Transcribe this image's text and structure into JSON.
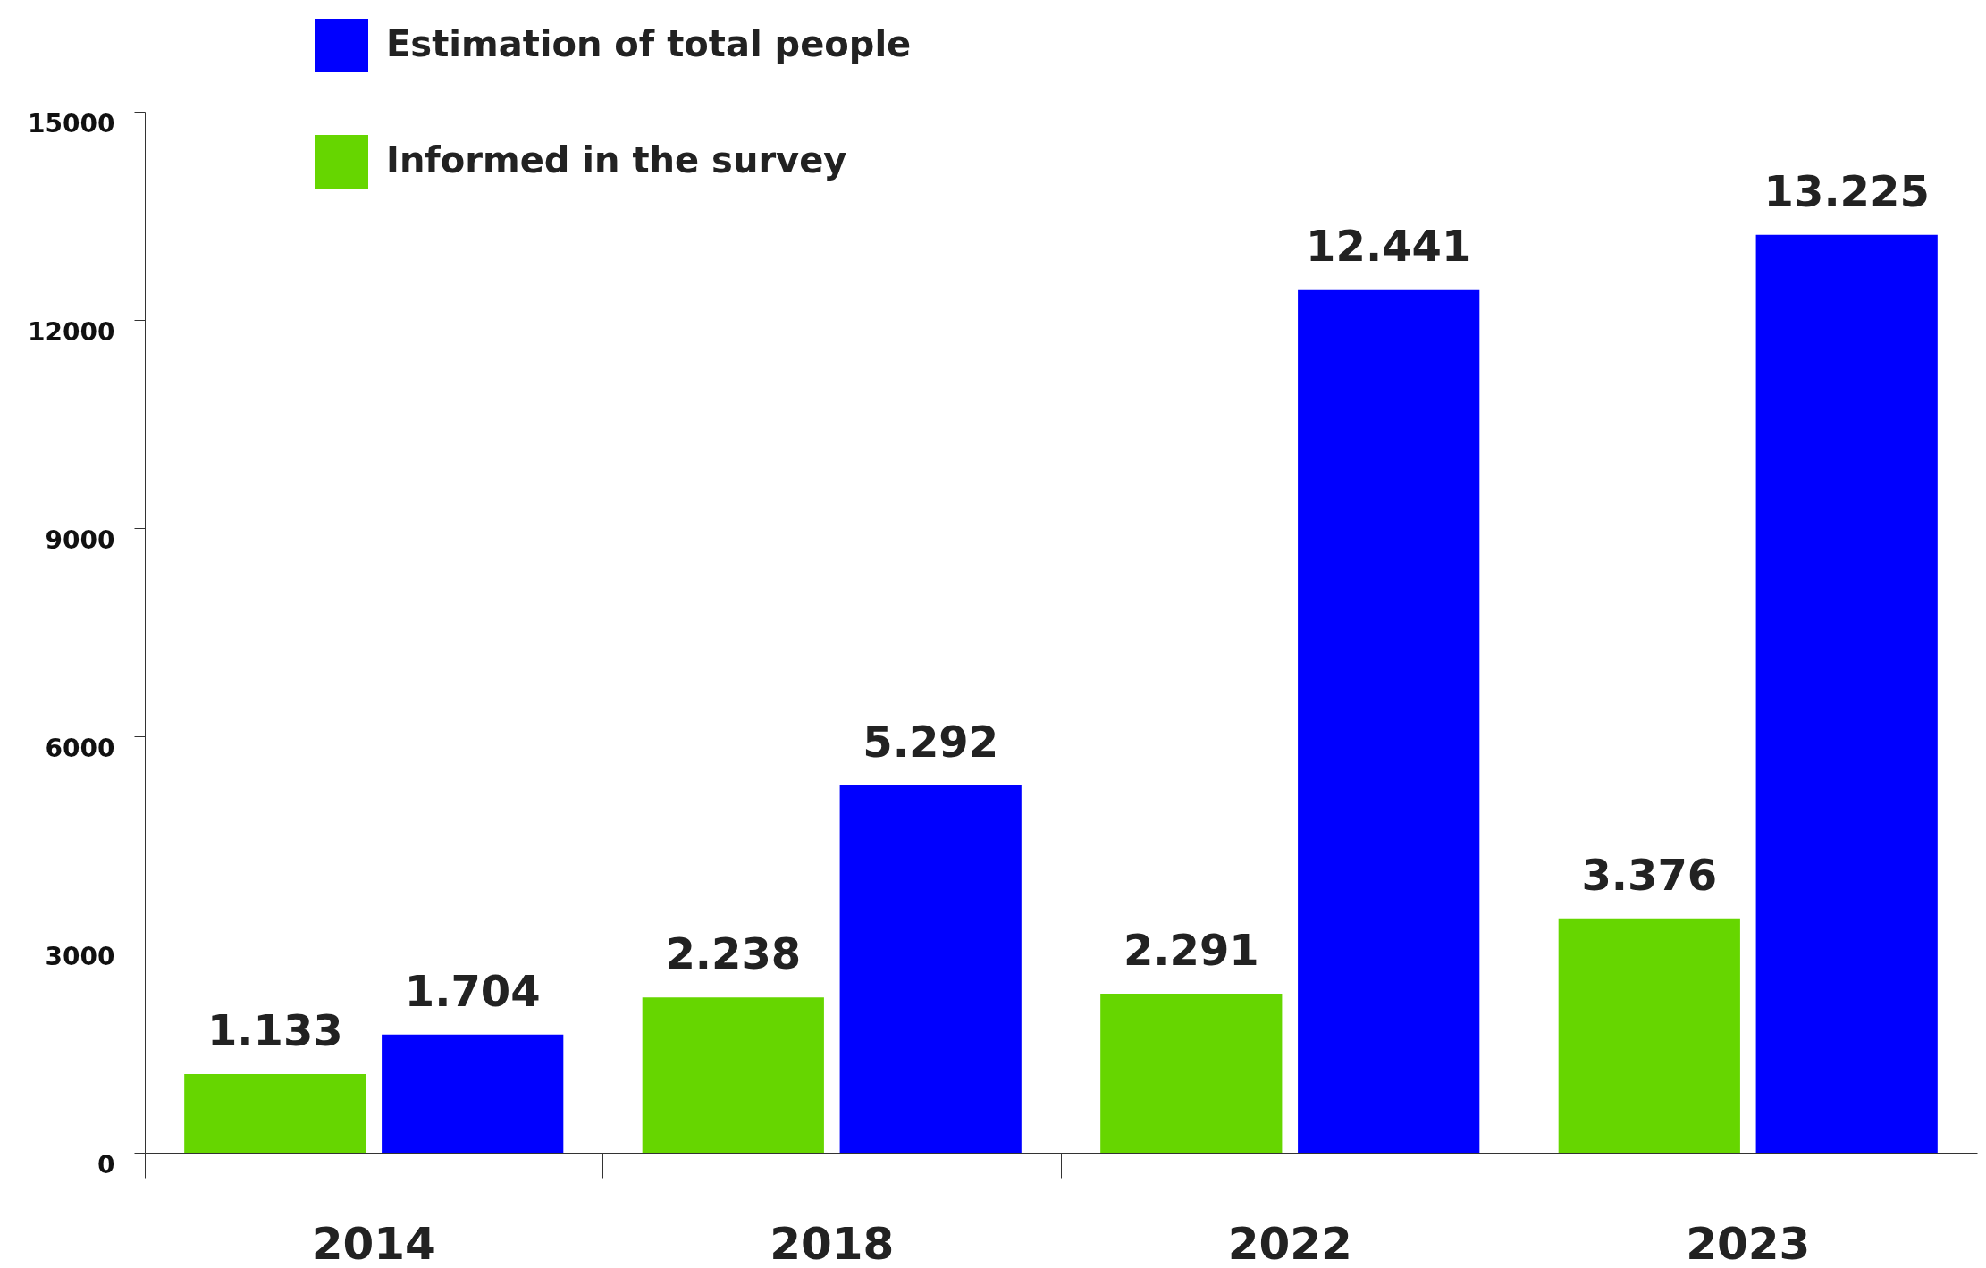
{
  "chart_data": {
    "type": "bar",
    "categories": [
      "2014",
      "2018",
      "2022",
      "2023"
    ],
    "series": [
      {
        "name": "Estimation of total people",
        "color": "#0000ff",
        "values": [
          1704,
          5292,
          12441,
          13225
        ],
        "value_labels": [
          "1.704",
          "5.292",
          "12.441",
          "13.225"
        ]
      },
      {
        "name": "Informed in the survey",
        "color": "#66d600",
        "values": [
          1133,
          2238,
          2291,
          3376
        ],
        "value_labels": [
          "1.133",
          "2.238",
          "2.291",
          "3.376"
        ]
      }
    ],
    "ylim": [
      0,
      15000
    ],
    "yticks": [
      0,
      3000,
      6000,
      9000,
      12000,
      15000
    ],
    "grid": false,
    "legend": "top left"
  }
}
